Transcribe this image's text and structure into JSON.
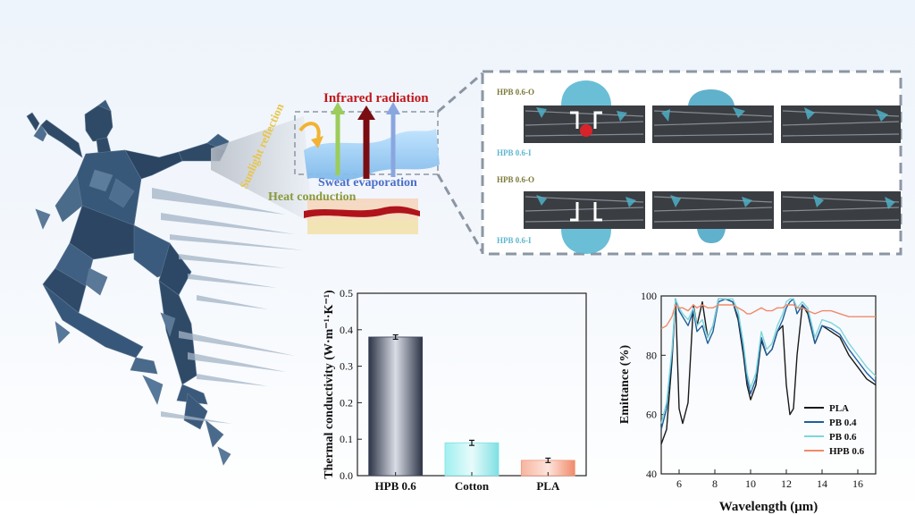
{
  "schematic": {
    "labels": {
      "infrared": "Infrared radiation",
      "sunlight": "Sunlight reflection",
      "sweat": "Sweat evaporation",
      "heat": "Heat conduction"
    },
    "colors": {
      "infrared": "#c0171c",
      "sunlight": "#e8c54a",
      "sweat": "#4a6ec9",
      "heat": "#8a9a3b"
    }
  },
  "droplet_panel": {
    "row1": {
      "top_label": "HPB 0.6-O",
      "bottom_label": "HPB 0.6-I"
    },
    "row2": {
      "top_label": "HPB 0.6-O",
      "bottom_label": "HPB 0.6-I"
    }
  },
  "chart_data": [
    {
      "type": "bar",
      "categories": [
        "HPB 0.6",
        "Cotton",
        "PLA"
      ],
      "values": [
        0.38,
        0.09,
        0.042
      ],
      "errors": [
        0.006,
        0.007,
        0.006
      ],
      "ylabel": "Thermal conductivity (W·m⁻¹·K⁻¹)",
      "xlabel": "",
      "ylim": [
        0,
        0.5
      ],
      "yticks": [
        "0.0",
        "0.1",
        "0.2",
        "0.3",
        "0.4",
        "0.5"
      ],
      "colors": [
        "#3a4257",
        "#7fe0e4",
        "#f2977c"
      ]
    },
    {
      "type": "line",
      "xlabel": "Wavelength (μm)",
      "ylabel": "Emittance (%)",
      "xlim": [
        5,
        17
      ],
      "ylim": [
        40,
        100
      ],
      "xticks": [
        "6",
        "8",
        "10",
        "12",
        "14",
        "16"
      ],
      "yticks": [
        "40",
        "60",
        "80",
        "100"
      ],
      "legend_position": "bottom-right",
      "x": [
        5,
        5.3,
        5.6,
        5.8,
        6.0,
        6.2,
        6.5,
        6.8,
        7.0,
        7.3,
        7.6,
        7.9,
        8.2,
        8.6,
        9.0,
        9.3,
        9.6,
        9.8,
        10.0,
        10.3,
        10.6,
        10.9,
        11.2,
        11.5,
        11.8,
        12.0,
        12.2,
        12.4,
        12.6,
        12.9,
        13.2,
        13.6,
        14.0,
        14.5,
        15.0,
        15.5,
        16.0,
        16.5,
        17.0
      ],
      "series": [
        {
          "name": "PLA",
          "color": "#1a1a1a",
          "values": [
            50,
            55,
            78,
            99,
            62,
            57,
            64,
            97,
            90,
            98,
            86,
            90,
            99,
            99,
            98,
            92,
            80,
            70,
            65,
            70,
            85,
            80,
            82,
            88,
            90,
            70,
            60,
            62,
            80,
            97,
            94,
            84,
            90,
            88,
            86,
            80,
            76,
            72,
            70
          ]
        },
        {
          "name": "PB 0.4",
          "color": "#1f5f9c",
          "values": [
            55,
            62,
            80,
            99,
            95,
            93,
            90,
            95,
            88,
            90,
            84,
            88,
            98,
            99,
            98,
            93,
            82,
            72,
            67,
            72,
            86,
            80,
            82,
            88,
            92,
            96,
            98,
            99,
            94,
            97,
            95,
            84,
            90,
            89,
            87,
            82,
            78,
            74,
            71
          ]
        },
        {
          "name": "PB 0.6",
          "color": "#7fd6dc",
          "values": [
            57,
            64,
            82,
            99,
            96,
            94,
            92,
            96,
            90,
            92,
            86,
            90,
            99,
            99,
            99,
            95,
            84,
            74,
            69,
            74,
            88,
            82,
            84,
            90,
            94,
            98,
            99,
            99,
            96,
            98,
            96,
            86,
            92,
            91,
            89,
            84,
            80,
            76,
            73
          ]
        },
        {
          "name": "HPB 0.6",
          "color": "#f08a6a",
          "values": [
            89,
            90,
            93,
            97,
            96,
            96,
            95,
            97,
            96,
            97,
            96,
            96,
            97,
            97,
            97,
            96,
            95,
            94,
            94,
            95,
            96,
            95,
            95,
            96,
            96,
            97,
            97,
            97,
            96,
            96,
            95,
            94,
            95,
            95,
            94,
            93,
            93,
            93,
            93
          ]
        }
      ]
    }
  ]
}
